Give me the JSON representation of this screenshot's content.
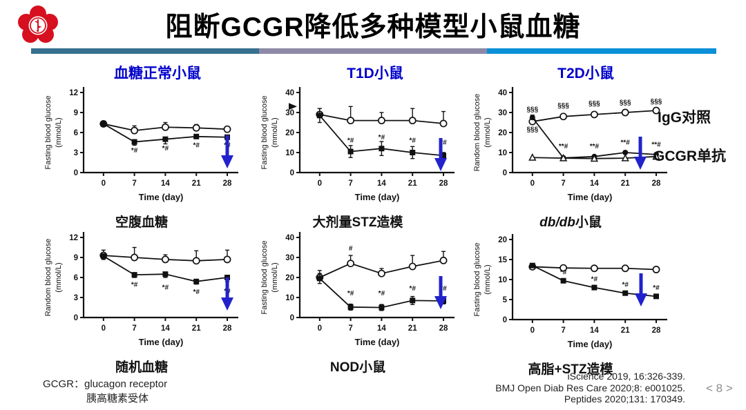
{
  "slide": {
    "title": "阻断GCGR降低多种模型小鼠血糖",
    "page": "< 8 >",
    "accent_blue": "#0000cc",
    "arrow_color": "#2222cc",
    "bar_colors": [
      "#38708f",
      "#8e89a7",
      "#0b90d8"
    ]
  },
  "columns": [
    {
      "label": "血糖正常小鼠"
    },
    {
      "label": "T1D小鼠"
    },
    {
      "label": "T2D小鼠"
    }
  ],
  "legend": {
    "igg": "IgG对照",
    "mab": "GCGR单抗"
  },
  "footnote": {
    "term": "GCGR：",
    "def_en": "glucagon receptor",
    "def_cn": "胰高糖素受体"
  },
  "references": [
    "iScience 2019, 16:326-339.",
    "BMJ Open Diab Res Care 2020;8: e001025.",
    "Peptides 2020;131: 170349."
  ],
  "chart_data": [
    {
      "type": "line",
      "ylabel1": "Fasting blood glucose",
      "ylabel2": "(mmol/L)",
      "xlabel": "Time (day)",
      "ymax": 12,
      "yticks": [
        0,
        3,
        6,
        9,
        12
      ],
      "x": [
        0,
        7,
        14,
        21,
        28
      ],
      "series": [
        {
          "name": "IgG对照",
          "marker": "circle-open",
          "values": [
            7.3,
            6.3,
            6.8,
            6.7,
            6.5
          ],
          "err": [
            0.3,
            0.7,
            0.7,
            0.5,
            0.4
          ],
          "err_dir": "up"
        },
        {
          "name": "GCGR单抗",
          "marker": "square-filled",
          "values": [
            7.3,
            4.6,
            5.0,
            5.4,
            5.3
          ],
          "err": [
            0.3,
            0.5,
            0.7,
            0.3,
            0.3
          ],
          "err_dir": "down"
        }
      ],
      "annotations": [
        {
          "text": "*#",
          "x": 7,
          "y": 3.0
        },
        {
          "text": "*#",
          "x": 14,
          "y": 3.3
        },
        {
          "text": "*#",
          "x": 21,
          "y": 3.8
        },
        {
          "text": "*#",
          "x": 28,
          "y": 3.8
        }
      ],
      "yaxis_arrow": null,
      "caption_i": "",
      "caption_t": "空腹血糖"
    },
    {
      "type": "line",
      "ylabel1": "Fasting blood glucose",
      "ylabel2": "(mmol/L)",
      "xlabel": "Time (day)",
      "ymax": 40,
      "yticks": [
        0,
        10,
        20,
        30,
        40
      ],
      "x": [
        0,
        7,
        14,
        21,
        28
      ],
      "series": [
        {
          "name": "IgG对照",
          "marker": "circle-open",
          "values": [
            29,
            26,
            26,
            26,
            24.5
          ],
          "err": [
            3,
            7,
            4,
            6,
            6
          ],
          "err_dir": "up"
        },
        {
          "name": "GCGR单抗",
          "marker": "square-filled",
          "values": [
            28.5,
            10.5,
            12,
            10,
            8.5
          ],
          "err": [
            3.5,
            3,
            3.5,
            3,
            1.5
          ],
          "err_dir": "both"
        }
      ],
      "annotations": [
        {
          "text": "*#",
          "x": 7,
          "y": 15
        },
        {
          "text": "*#",
          "x": 14,
          "y": 16.5
        },
        {
          "text": "*#",
          "x": 21,
          "y": 15
        },
        {
          "text": "*#",
          "x": 28,
          "y": 14
        }
      ],
      "yaxis_arrow": 33,
      "caption_i": "",
      "caption_t": "大剂量STZ造模"
    },
    {
      "type": "line",
      "ylabel1": "Random blood glucose",
      "ylabel2": "(mmol/L)",
      "xlabel": "Time (day)",
      "ymax": 40,
      "yticks": [
        0,
        10,
        20,
        30,
        40
      ],
      "x": [
        0,
        7,
        14,
        21,
        28
      ],
      "series": [
        {
          "name": "IgG对照",
          "marker": "circle-open",
          "values": [
            25.5,
            28,
            29,
            30,
            31
          ],
          "err": [
            1.2,
            0.8,
            0.8,
            0.8,
            0.8
          ],
          "err_dir": "up"
        },
        {
          "name": "GCGR单抗",
          "marker": "circle-filled",
          "values": [
            27.5,
            7.3,
            8,
            10,
            9
          ],
          "err": [
            1.2,
            0.7,
            0.7,
            0.7,
            0.7
          ],
          "err_dir": "up"
        },
        {
          "name": "",
          "marker": "triangle-open",
          "values": [
            7.5,
            7.2,
            7.0,
            7.2,
            8.0
          ],
          "err": null,
          "err_dir": "up"
        }
      ],
      "annotations": [
        {
          "text": "§§§",
          "x": 0,
          "y": 30.5
        },
        {
          "text": "§§§",
          "x": 0,
          "y": 20.5
        },
        {
          "text": "§§§",
          "x": 7,
          "y": 32.5
        },
        {
          "text": "§§§",
          "x": 14,
          "y": 33.5
        },
        {
          "text": "§§§",
          "x": 21,
          "y": 34
        },
        {
          "text": "§§§",
          "x": 28,
          "y": 34.5
        },
        {
          "text": "**#",
          "x": 7,
          "y": 12
        },
        {
          "text": "**#",
          "x": 14,
          "y": 12
        },
        {
          "text": "**#",
          "x": 21,
          "y": 14
        },
        {
          "text": "**#",
          "x": 28,
          "y": 13
        }
      ],
      "yaxis_arrow": null,
      "caption_i": "db/db",
      "caption_t": "小鼠"
    },
    {
      "type": "line",
      "ylabel1": "Random blood glucose",
      "ylabel2": "(mmol/L)",
      "xlabel": "Time (day)",
      "ymax": 12,
      "yticks": [
        0,
        3,
        6,
        9,
        12
      ],
      "x": [
        0,
        7,
        14,
        21,
        28
      ],
      "series": [
        {
          "name": "IgG对照",
          "marker": "circle-open",
          "values": [
            9.3,
            9.0,
            8.7,
            8.5,
            8.7
          ],
          "err": [
            0.8,
            1.5,
            0.7,
            1.5,
            1.4
          ],
          "err_dir": "up"
        },
        {
          "name": "GCGR单抗",
          "marker": "square-filled",
          "values": [
            9.2,
            6.4,
            6.5,
            5.4,
            6.0
          ],
          "err": [
            0.5,
            0.4,
            0.5,
            0.4,
            0.6
          ],
          "err_dir": "down"
        }
      ],
      "annotations": [
        {
          "text": "*#",
          "x": 7,
          "y": 4.6
        },
        {
          "text": "*#",
          "x": 14,
          "y": 4.2
        },
        {
          "text": "*#",
          "x": 21,
          "y": 3.5
        },
        {
          "text": "*#",
          "x": 28,
          "y": 3.6
        }
      ],
      "yaxis_arrow": null,
      "caption_i": "",
      "caption_t": "随机血糖"
    },
    {
      "type": "line",
      "ylabel1": "Fasting blood glucose",
      "ylabel2": "(mmol/L)",
      "xlabel": "Time (day)",
      "ymax": 40,
      "yticks": [
        0,
        10,
        20,
        30,
        40
      ],
      "x": [
        0,
        7,
        14,
        21,
        28
      ],
      "series": [
        {
          "name": "IgG对照",
          "marker": "circle-open",
          "values": [
            20,
            27,
            22,
            25.5,
            28.5
          ],
          "err": [
            3.5,
            4,
            2.5,
            5.5,
            4.5
          ],
          "err_dir": "up"
        },
        {
          "name": "GCGR单抗",
          "marker": "square-filled",
          "values": [
            19.5,
            5.2,
            5.0,
            8.5,
            8.3
          ],
          "err": [
            2.5,
            1.5,
            1.5,
            2,
            1.5
          ],
          "err_dir": "both"
        }
      ],
      "annotations": [
        {
          "text": "#",
          "x": 7,
          "y": 33.5
        },
        {
          "text": "*#",
          "x": 7,
          "y": 11
        },
        {
          "text": "*#",
          "x": 14,
          "y": 11
        },
        {
          "text": "*#",
          "x": 21,
          "y": 13.5
        },
        {
          "text": "*#",
          "x": 28,
          "y": 13.5
        }
      ],
      "yaxis_arrow": null,
      "caption_i": "",
      "caption_t": "NOD小鼠"
    },
    {
      "type": "line",
      "ylabel1": "Fasting blood glucose",
      "ylabel2": "(mmol/L)",
      "xlabel": "Time (day)",
      "ymax": 20,
      "yticks": [
        0,
        5,
        10,
        15,
        20
      ],
      "x": [
        0,
        7,
        14,
        21,
        28
      ],
      "series": [
        {
          "name": "IgG对照",
          "marker": "circle-open",
          "values": [
            13.2,
            12.9,
            12.8,
            12.8,
            12.5
          ],
          "err": [
            0.6,
            0.4,
            0.4,
            0.6,
            0.5
          ],
          "err_dir": "up"
        },
        {
          "name": "GCGR单抗",
          "marker": "square-filled",
          "values": [
            13.5,
            9.7,
            8.0,
            6.6,
            5.8
          ],
          "err": [
            0.5,
            0.5,
            0.5,
            0.4,
            0.4
          ],
          "err_dir": "both"
        }
      ],
      "annotations": [
        {
          "text": "*#",
          "x": 7,
          "y": 11.3
        },
        {
          "text": "*#",
          "x": 14,
          "y": 9.6
        },
        {
          "text": "*#",
          "x": 21,
          "y": 8.2
        },
        {
          "text": "*#",
          "x": 28,
          "y": 7.4
        }
      ],
      "yaxis_arrow": null,
      "caption_i": "",
      "caption_t": "高脂+STZ造模"
    }
  ]
}
